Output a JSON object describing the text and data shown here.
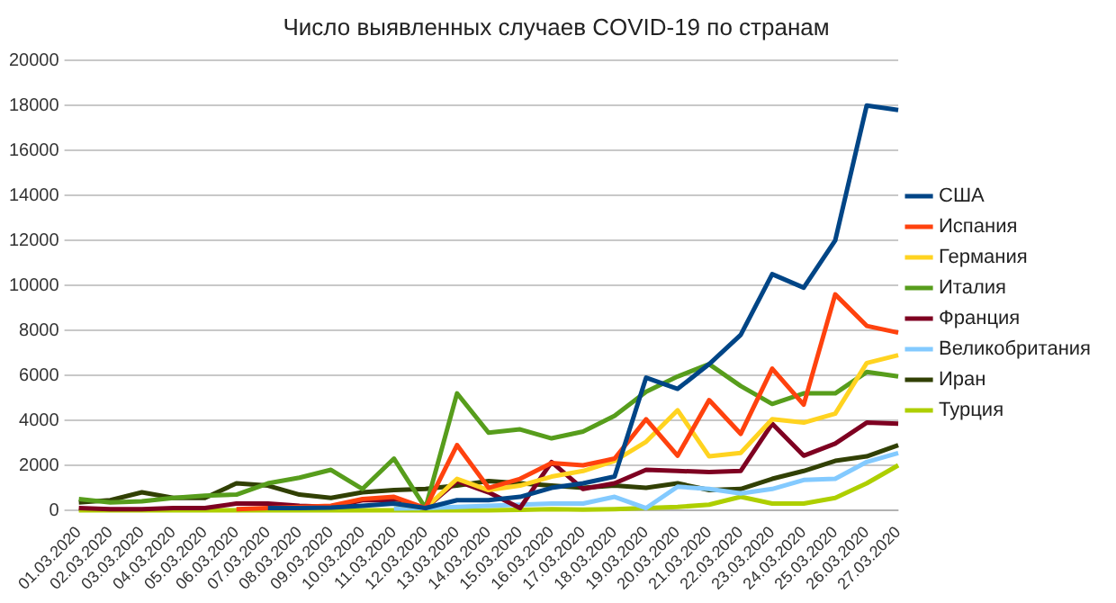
{
  "chart_data": {
    "type": "line",
    "title": "Число выявленных случаев COVID-19 по странам",
    "categories": [
      "01.03.2020",
      "02.03.2020",
      "03.03.2020",
      "04.03.2020",
      "05.03.2020",
      "06.03.2020",
      "07.03.2020",
      "08.03.2020",
      "09.03.2020",
      "10.03.2020",
      "11.03.2020",
      "12.03.2020",
      "13.03.2020",
      "14.03.2020",
      "15.03.2020",
      "16.03.2020",
      "17.03.2020",
      "18.03.2020",
      "19.03.2020",
      "20.03.2020",
      "21.03.2020",
      "22.03.2020",
      "23.03.2020",
      "24.03.2020",
      "25.03.2020",
      "26.03.2020",
      "27.03.2020"
    ],
    "series": [
      {
        "name": "США",
        "color": "#004586",
        "values": [
          null,
          null,
          null,
          null,
          null,
          null,
          100,
          100,
          120,
          200,
          300,
          100,
          450,
          450,
          600,
          1000,
          1200,
          1500,
          5900,
          5400,
          6500,
          7800,
          10500,
          9900,
          12000,
          18000,
          17800
        ]
      },
      {
        "name": "Испания",
        "color": "#ff420e",
        "values": [
          null,
          null,
          null,
          null,
          null,
          50,
          100,
          150,
          200,
          500,
          600,
          100,
          2900,
          1000,
          1400,
          2100,
          2000,
          2300,
          4050,
          2430,
          4900,
          3400,
          6300,
          4700,
          9600,
          8200,
          7900
        ]
      },
      {
        "name": "Германия",
        "color": "#ffd320",
        "values": [
          null,
          null,
          null,
          null,
          null,
          null,
          null,
          null,
          null,
          null,
          300,
          100,
          1400,
          900,
          1100,
          1500,
          1750,
          2200,
          3050,
          4450,
          2400,
          2550,
          4050,
          3900,
          4300,
          6550,
          6900
        ]
      },
      {
        "name": "Италия",
        "color": "#579d1c",
        "values": [
          500,
          350,
          400,
          550,
          650,
          700,
          1200,
          1450,
          1800,
          950,
          2300,
          100,
          5200,
          3450,
          3600,
          3200,
          3500,
          4200,
          5270,
          5950,
          6500,
          5530,
          4730,
          5200,
          5200,
          6150,
          5950
        ]
      },
      {
        "name": "Франция",
        "color": "#7e0021",
        "values": [
          100,
          50,
          50,
          100,
          100,
          300,
          300,
          200,
          150,
          450,
          450,
          100,
          1300,
          800,
          100,
          2150,
          950,
          1200,
          1800,
          1750,
          1700,
          1750,
          3850,
          2430,
          2970,
          3900,
          3850
        ]
      },
      {
        "name": "Великобритания",
        "color": "#83caff",
        "values": [
          null,
          null,
          null,
          null,
          null,
          null,
          null,
          null,
          null,
          null,
          80,
          100,
          150,
          200,
          250,
          300,
          300,
          600,
          100,
          1050,
          950,
          750,
          950,
          1350,
          1400,
          2150,
          2550
        ]
      },
      {
        "name": "Иран",
        "color": "#314004",
        "values": [
          350,
          450,
          800,
          550,
          550,
          1200,
          1100,
          700,
          550,
          800,
          900,
          950,
          1100,
          1300,
          1200,
          1100,
          1000,
          1100,
          1000,
          1200,
          900,
          950,
          1400,
          1750,
          2200,
          2400,
          2900
        ]
      },
      {
        "name": "Турция",
        "color": "#aecf00",
        "values": [
          0,
          0,
          0,
          0,
          0,
          0,
          0,
          0,
          0,
          0,
          0,
          0,
          0,
          0,
          20,
          50,
          30,
          50,
          100,
          150,
          250,
          600,
          300,
          300,
          550,
          1200,
          2000
        ]
      }
    ],
    "ylim": [
      0,
      20000
    ],
    "yticks": [
      0,
      2000,
      4000,
      6000,
      8000,
      10000,
      12000,
      14000,
      16000,
      18000,
      20000
    ],
    "grid": "y",
    "legend": "right",
    "marker": "none",
    "line_style": "solid"
  }
}
